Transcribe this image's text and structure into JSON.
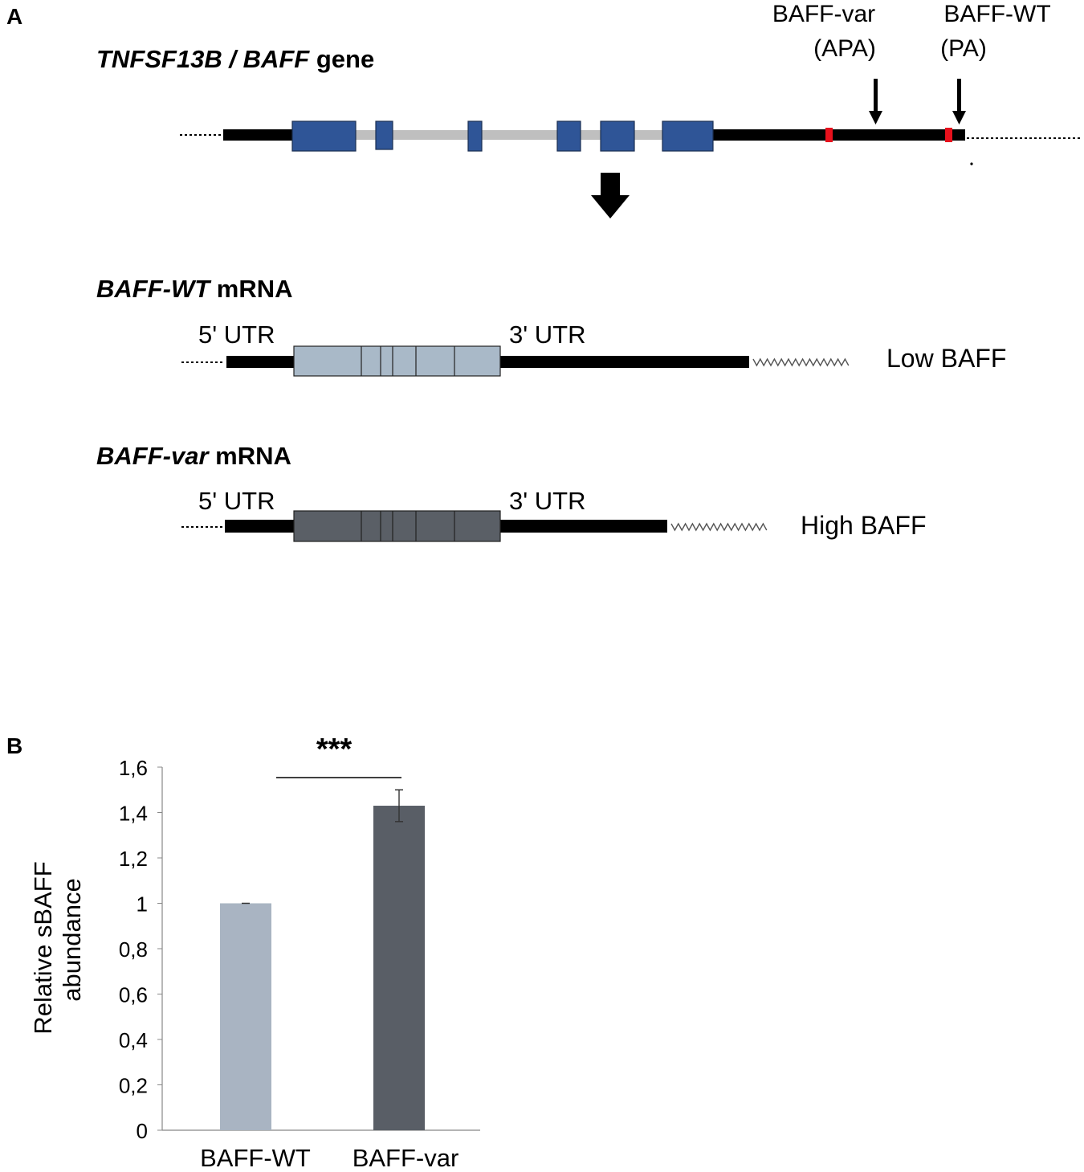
{
  "panel_a": {
    "label": "A",
    "gene_title_italic": "TNFSF13B / BAFF",
    "gene_title_rest": " gene",
    "apa_site": {
      "line1": "BAFF-var",
      "line2": "(APA)"
    },
    "pa_site": {
      "line1": "BAFF-WT",
      "line2": "(PA)"
    },
    "wt_mrna": {
      "italic": "BAFF-WT",
      "rest": " mRNA",
      "utr5": "5' UTR",
      "utr3": "3' UTR",
      "result": "Low BAFF"
    },
    "var_mrna": {
      "italic": "BAFF-var",
      "rest": " mRNA",
      "utr5": "5' UTR",
      "utr3": "3' UTR",
      "result": "High BAFF"
    },
    "colors": {
      "exon": "#2f5597",
      "intron": "#bfbfbf",
      "pa_signal": "#e8101c",
      "wt_exon": "#a9b9c8",
      "var_exon": "#5a5f66"
    }
  },
  "panel_b": {
    "label": "B"
  },
  "chart_data": {
    "type": "bar",
    "categories": [
      "BAFF-WT",
      "BAFF-var"
    ],
    "values": [
      1.0,
      1.43
    ],
    "errors": [
      0.0,
      0.07
    ],
    "ylabel_line1": "Relative sBAFF",
    "ylabel_line2": "abundance",
    "ylim": [
      0,
      1.6
    ],
    "yticks": [
      "0",
      "0,2",
      "0,4",
      "0,6",
      "0,8",
      "1",
      "1,2",
      "1,4",
      "1,6"
    ],
    "significance": "***",
    "colors": [
      "#a9b4c2",
      "#595e66"
    ],
    "grid": false
  }
}
